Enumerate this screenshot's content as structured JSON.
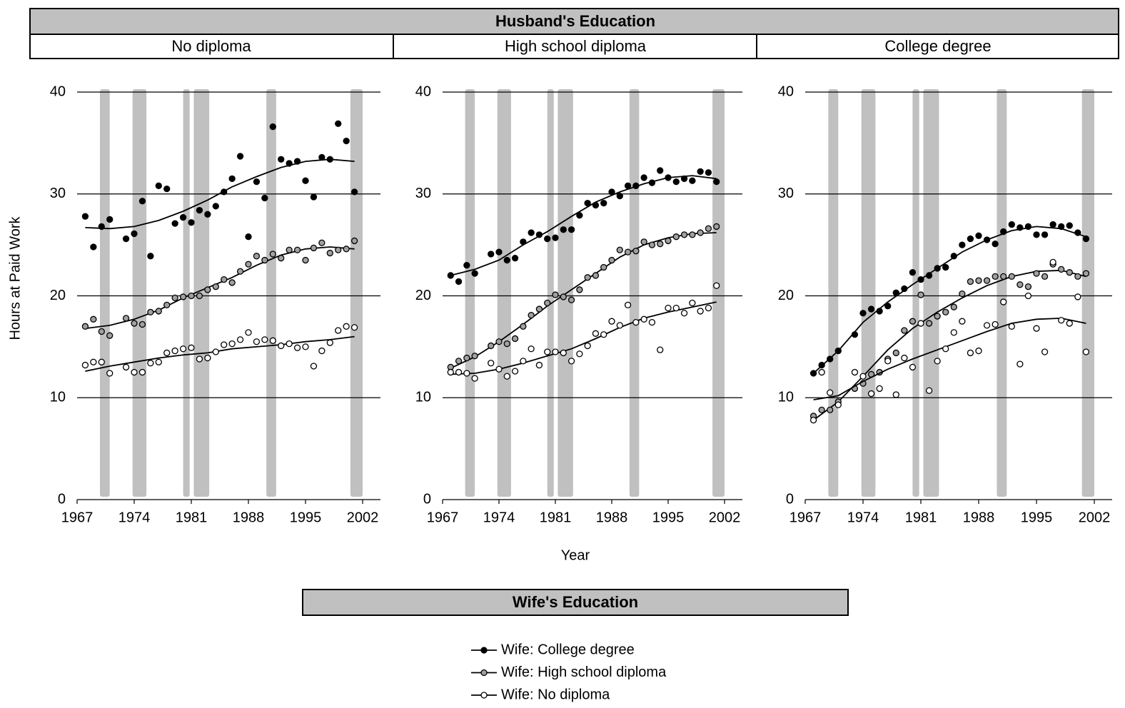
{
  "header": {
    "title": "Husband's Education"
  },
  "figure": {
    "y_label": "Hours at Paid Work",
    "x_label": "Year",
    "legend_title": "Wife's Education"
  },
  "chart_data": [
    {
      "type": "scatter",
      "title": "No diploma",
      "xlim": [
        1967,
        2002
      ],
      "xticks": [
        1967,
        1974,
        1981,
        1988,
        1995,
        2002
      ],
      "ylim": [
        0,
        40
      ],
      "yticks": [
        0,
        10,
        20,
        30,
        40
      ],
      "grid": true,
      "shaded_periods": [
        [
          1969.8,
          1971
        ],
        [
          1973.8,
          1975.5
        ],
        [
          1980,
          1980.8
        ],
        [
          1981.3,
          1983.2
        ],
        [
          1990.2,
          1991.4
        ],
        [
          2000.5,
          2002
        ]
      ],
      "x": [
        1968,
        1969,
        1970,
        1971,
        1972,
        1973,
        1974,
        1975,
        1976,
        1977,
        1978,
        1979,
        1980,
        1981,
        1982,
        1983,
        1984,
        1985,
        1986,
        1987,
        1988,
        1989,
        1990,
        1991,
        1992,
        1993,
        1994,
        1995,
        1996,
        1997,
        1998,
        1999,
        2000,
        2001
      ],
      "trend_x": [
        1968,
        1971,
        1974,
        1977,
        1980,
        1983,
        1986,
        1989,
        1992,
        1995,
        1998,
        2001
      ],
      "series": [
        {
          "name": "Wife: College degree",
          "color": "#000000",
          "values": [
            27.8,
            24.8,
            26.8,
            27.5,
            null,
            25.6,
            26.1,
            29.3,
            23.9,
            30.8,
            30.5,
            27.1,
            27.7,
            27.2,
            28.4,
            28.0,
            28.8,
            30.2,
            31.5,
            33.7,
            25.8,
            31.2,
            29.6,
            36.6,
            33.4,
            33.0,
            33.2,
            31.3,
            29.7,
            33.6,
            33.4,
            36.9,
            35.2,
            30.2
          ],
          "trend": [
            26.7,
            26.6,
            26.8,
            27.4,
            28.3,
            29.4,
            30.7,
            31.7,
            32.6,
            33.2,
            33.4,
            33.2
          ]
        },
        {
          "name": "Wife: High school diploma",
          "color": "#a0a0a0",
          "values": [
            17.0,
            17.7,
            16.5,
            16.1,
            null,
            17.8,
            17.3,
            17.2,
            18.4,
            18.5,
            19.1,
            19.8,
            19.9,
            20.0,
            20.0,
            20.6,
            20.9,
            21.6,
            21.3,
            22.4,
            23.1,
            23.9,
            23.5,
            24.1,
            23.7,
            24.5,
            24.5,
            23.5,
            24.7,
            25.2,
            24.2,
            24.5,
            24.6,
            25.4
          ],
          "trend": [
            16.8,
            17.1,
            17.7,
            18.6,
            19.8,
            20.8,
            21.8,
            23.0,
            24.0,
            24.6,
            24.8,
            24.6
          ]
        },
        {
          "name": "Wife: No diploma",
          "color": "#ffffff",
          "values": [
            13.2,
            13.5,
            13.5,
            12.4,
            null,
            13.0,
            12.5,
            12.5,
            13.4,
            13.5,
            14.4,
            14.6,
            14.8,
            14.9,
            13.8,
            13.9,
            14.5,
            15.2,
            15.3,
            15.7,
            16.4,
            15.5,
            15.7,
            15.6,
            15.1,
            15.3,
            14.9,
            15.0,
            13.1,
            14.6,
            15.4,
            16.6,
            17.0,
            16.9
          ],
          "trend": [
            12.6,
            13.1,
            13.5,
            13.9,
            14.2,
            14.4,
            14.8,
            15.0,
            15.2,
            15.5,
            15.7,
            16.0
          ]
        }
      ]
    },
    {
      "type": "scatter",
      "title": "High school diploma",
      "xlim": [
        1967,
        2002
      ],
      "xticks": [
        1967,
        1974,
        1981,
        1988,
        1995,
        2002
      ],
      "ylim": [
        0,
        40
      ],
      "yticks": [
        0,
        10,
        20,
        30,
        40
      ],
      "grid": true,
      "shaded_periods": [
        [
          1969.8,
          1971
        ],
        [
          1973.8,
          1975.5
        ],
        [
          1980,
          1980.8
        ],
        [
          1981.3,
          1983.2
        ],
        [
          1990.2,
          1991.4
        ],
        [
          2000.5,
          2002
        ]
      ],
      "x": [
        1968,
        1969,
        1970,
        1971,
        1972,
        1973,
        1974,
        1975,
        1976,
        1977,
        1978,
        1979,
        1980,
        1981,
        1982,
        1983,
        1984,
        1985,
        1986,
        1987,
        1988,
        1989,
        1990,
        1991,
        1992,
        1993,
        1994,
        1995,
        1996,
        1997,
        1998,
        1999,
        2000,
        2001
      ],
      "trend_x": [
        1968,
        1971,
        1974,
        1977,
        1980,
        1983,
        1986,
        1989,
        1992,
        1995,
        1998,
        2001
      ],
      "series": [
        {
          "name": "Wife: College degree",
          "color": "#000000",
          "values": [
            22.0,
            21.4,
            23.0,
            22.2,
            null,
            24.1,
            24.3,
            23.5,
            23.7,
            25.3,
            26.2,
            26.0,
            25.6,
            25.7,
            26.5,
            26.5,
            27.9,
            29.1,
            28.9,
            29.1,
            30.2,
            29.8,
            30.8,
            30.8,
            31.6,
            31.1,
            32.3,
            31.6,
            31.2,
            31.5,
            31.3,
            32.2,
            32.1,
            31.2
          ],
          "trend": [
            22.0,
            22.6,
            23.5,
            25.0,
            26.3,
            27.8,
            29.2,
            30.2,
            31.0,
            31.6,
            31.8,
            31.5
          ]
        },
        {
          "name": "Wife: High school diploma",
          "color": "#a0a0a0",
          "values": [
            13.0,
            13.6,
            13.9,
            14.1,
            null,
            15.1,
            15.5,
            15.3,
            15.8,
            17.0,
            18.1,
            18.7,
            19.3,
            20.1,
            19.9,
            19.6,
            20.6,
            21.8,
            22.0,
            22.8,
            23.5,
            24.5,
            24.3,
            24.4,
            25.3,
            25.0,
            25.1,
            25.4,
            25.8,
            26.0,
            26.0,
            26.2,
            26.6,
            26.8
          ],
          "trend": [
            12.9,
            14.0,
            15.5,
            17.2,
            19.0,
            20.6,
            22.2,
            23.8,
            25.0,
            25.7,
            26.1,
            26.2
          ]
        },
        {
          "name": "Wife: No diploma",
          "color": "#ffffff",
          "values": [
            12.5,
            12.5,
            12.4,
            11.9,
            null,
            13.4,
            12.8,
            12.1,
            12.6,
            13.6,
            14.8,
            13.2,
            14.5,
            14.5,
            14.4,
            13.6,
            14.3,
            15.1,
            16.3,
            16.2,
            17.5,
            17.1,
            19.1,
            17.4,
            17.7,
            17.4,
            14.7,
            18.8,
            18.8,
            18.3,
            19.3,
            18.5,
            18.8,
            21.0
          ],
          "trend": [
            12.3,
            12.4,
            12.8,
            13.4,
            14.1,
            14.8,
            15.8,
            16.9,
            17.8,
            18.4,
            18.9,
            19.4
          ]
        }
      ]
    },
    {
      "type": "scatter",
      "title": "College degree",
      "xlim": [
        1967,
        2002
      ],
      "xticks": [
        1967,
        1974,
        1981,
        1988,
        1995,
        2002
      ],
      "ylim": [
        0,
        40
      ],
      "yticks": [
        0,
        10,
        20,
        30,
        40
      ],
      "grid": true,
      "shaded_periods": [
        [
          1969.8,
          1971
        ],
        [
          1973.8,
          1975.5
        ],
        [
          1980,
          1980.8
        ],
        [
          1981.3,
          1983.2
        ],
        [
          1990.2,
          1991.4
        ],
        [
          2000.5,
          2002
        ]
      ],
      "x": [
        1968,
        1969,
        1970,
        1971,
        1972,
        1973,
        1974,
        1975,
        1976,
        1977,
        1978,
        1979,
        1980,
        1981,
        1982,
        1983,
        1984,
        1985,
        1986,
        1987,
        1988,
        1989,
        1990,
        1991,
        1992,
        1993,
        1994,
        1995,
        1996,
        1997,
        1998,
        1999,
        2000,
        2001
      ],
      "trend_x": [
        1968,
        1971,
        1974,
        1977,
        1980,
        1983,
        1986,
        1989,
        1992,
        1995,
        1998,
        2001
      ],
      "series": [
        {
          "name": "Wife: College degree",
          "color": "#000000",
          "values": [
            12.4,
            13.2,
            13.8,
            14.6,
            null,
            16.2,
            18.3,
            18.7,
            18.5,
            19.0,
            20.3,
            20.7,
            22.3,
            21.6,
            22.0,
            22.7,
            22.8,
            23.9,
            25.0,
            25.6,
            25.9,
            25.5,
            25.1,
            26.3,
            27.0,
            26.7,
            26.8,
            26.0,
            26.0,
            27.0,
            26.8,
            26.9,
            26.2,
            25.6
          ],
          "trend": [
            12.4,
            14.6,
            17.4,
            19.4,
            21.1,
            22.7,
            24.3,
            25.5,
            26.4,
            26.8,
            26.6,
            25.8
          ]
        },
        {
          "name": "Wife: High school diploma",
          "color": "#a0a0a0",
          "values": [
            8.2,
            8.8,
            8.8,
            9.6,
            null,
            10.9,
            11.4,
            12.3,
            12.5,
            13.8,
            14.4,
            16.6,
            17.5,
            20.1,
            17.3,
            18.0,
            18.4,
            18.9,
            20.2,
            21.4,
            21.5,
            21.5,
            21.9,
            21.9,
            21.9,
            21.1,
            20.9,
            22.2,
            21.9,
            23.1,
            22.6,
            22.3,
            21.9,
            22.2
          ],
          "trend": [
            7.8,
            9.6,
            12.1,
            14.7,
            16.8,
            18.4,
            19.8,
            21.0,
            21.9,
            22.4,
            22.5,
            21.9
          ]
        },
        {
          "name": "Wife: No diploma",
          "color": "#ffffff",
          "values": [
            7.8,
            12.5,
            10.5,
            9.3,
            null,
            12.5,
            12.1,
            10.4,
            10.9,
            13.6,
            10.3,
            13.9,
            13.0,
            17.3,
            10.7,
            13.6,
            14.8,
            16.4,
            17.5,
            14.4,
            14.6,
            17.1,
            17.2,
            19.4,
            17.0,
            13.3,
            20.0,
            16.8,
            14.5,
            23.3,
            17.6,
            17.3,
            19.9,
            14.5
          ],
          "trend": [
            9.8,
            10.2,
            11.6,
            12.8,
            13.8,
            14.7,
            15.6,
            16.5,
            17.3,
            17.7,
            17.8,
            17.3
          ]
        }
      ]
    }
  ]
}
